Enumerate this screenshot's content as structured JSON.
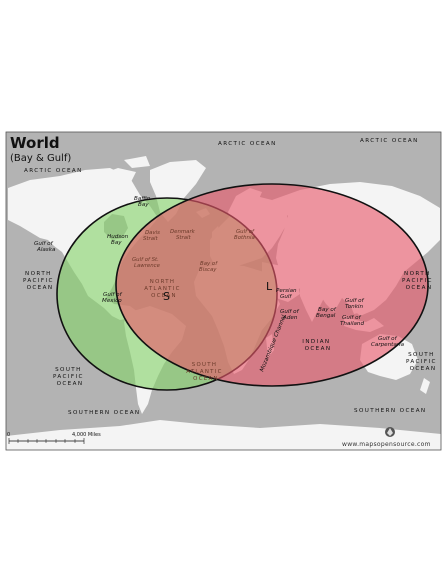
{
  "map": {
    "title": "World",
    "subtitle": "(Bay & Gulf)",
    "credit": "www.mapsopensource.com",
    "scale_label": "4,000 Miles",
    "scale_zero": "0",
    "colors": {
      "background_water": "#b3b3b3",
      "land": "#f4f4f4",
      "circle_s_fill": "#86d36a",
      "circle_l_fill": "#e8586a",
      "outline": "#111111"
    },
    "markers": {
      "s": "S",
      "l": "L"
    },
    "oceans": {
      "arctic_left": "ARCTIC OCEAN",
      "arctic_mid": "ARCTIC OCEAN",
      "arctic_right": "ARCTIC OCEAN",
      "north_pacific_left": [
        "NORTH",
        "PACIFIC",
        "OCEAN"
      ],
      "north_pacific_right": [
        "NORTH",
        "PACIFIC",
        "OCEAN"
      ],
      "north_atlantic": [
        "NORTH",
        "ATLANTIC",
        "OCEAN"
      ],
      "south_pacific_left": [
        "SOUTH",
        "PACIFIC",
        "OCEAN"
      ],
      "south_pacific_right": [
        "SOUTH",
        "PACIFIC",
        "OCEAN"
      ],
      "south_atlantic": [
        "SOUTH",
        "ATLANTIC",
        "OCEAN"
      ],
      "indian": [
        "INDIAN",
        "OCEAN"
      ],
      "southern_left": "SOUTHERN OCEAN",
      "southern_right": "SOUTHERN OCEAN"
    },
    "water_bodies": {
      "baffin_bay": [
        "Baffin",
        "Bay"
      ],
      "gulf_of_alaska": [
        "Gulf of",
        "Alaska"
      ],
      "hudson_bay": [
        "Hudson",
        "Bay"
      ],
      "davis_strait": [
        "Davis",
        "Strait"
      ],
      "denmark_strait": [
        "Denmark",
        "Strait"
      ],
      "gulf_of_bothnia": [
        "Gulf of",
        "Bothnia"
      ],
      "gulf_of_st_lawrence": [
        "Gulf of St.",
        "Lawrence"
      ],
      "bay_of_biscay": [
        "Bay of",
        "Biscay"
      ],
      "gulf_of_mexico": [
        "Gulf of",
        "Mexico"
      ],
      "persian_gulf": [
        "Persian",
        "Gulf"
      ],
      "gulf_of_aden": [
        "Gulf of",
        "Aden"
      ],
      "bay_of_bengal": [
        "Bay of",
        "Bengal"
      ],
      "gulf_of_tonkin": [
        "Gulf of",
        "Tonkin"
      ],
      "gulf_of_thailand": [
        "Gulf of",
        "Thailand"
      ],
      "gulf_of_carpentaria": [
        "Gulf of",
        "Carpentaria"
      ],
      "mozambique_channel": "Mozambique Channel"
    }
  }
}
